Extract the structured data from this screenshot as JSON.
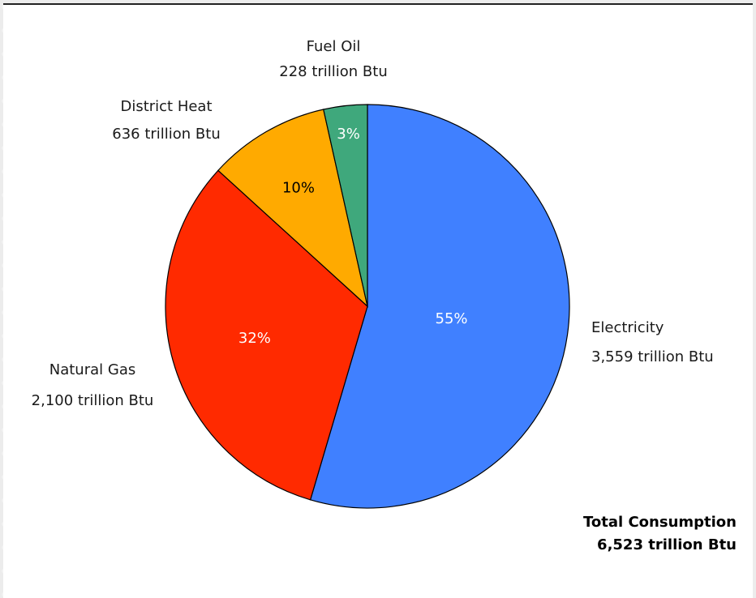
{
  "chart_data": {
    "type": "pie",
    "slices": [
      {
        "name": "Electricity",
        "value": 3559,
        "value_label": "3,559 trillion Btu",
        "percent_label": "55%",
        "color": "#4080ff",
        "percent_color": "#ffffff"
      },
      {
        "name": "Natural Gas",
        "value": 2100,
        "value_label": "2,100 trillion Btu",
        "percent_label": "32%",
        "color": "#ff2a00",
        "percent_color": "#ffffff"
      },
      {
        "name": "District Heat",
        "value": 636,
        "value_label": "636 trillion Btu",
        "percent_label": "10%",
        "color": "#ffaa00",
        "percent_color": "#000000"
      },
      {
        "name": "Fuel Oil",
        "value": 228,
        "value_label": "228 trillion Btu",
        "percent_label": "3%",
        "color": "#3fa87c",
        "percent_color": "#ffffff"
      }
    ],
    "total": {
      "label": "Total Consumption",
      "value": 6523,
      "value_label": "6,523 trillion Btu"
    },
    "start_position": "top",
    "direction": "clockwise"
  }
}
